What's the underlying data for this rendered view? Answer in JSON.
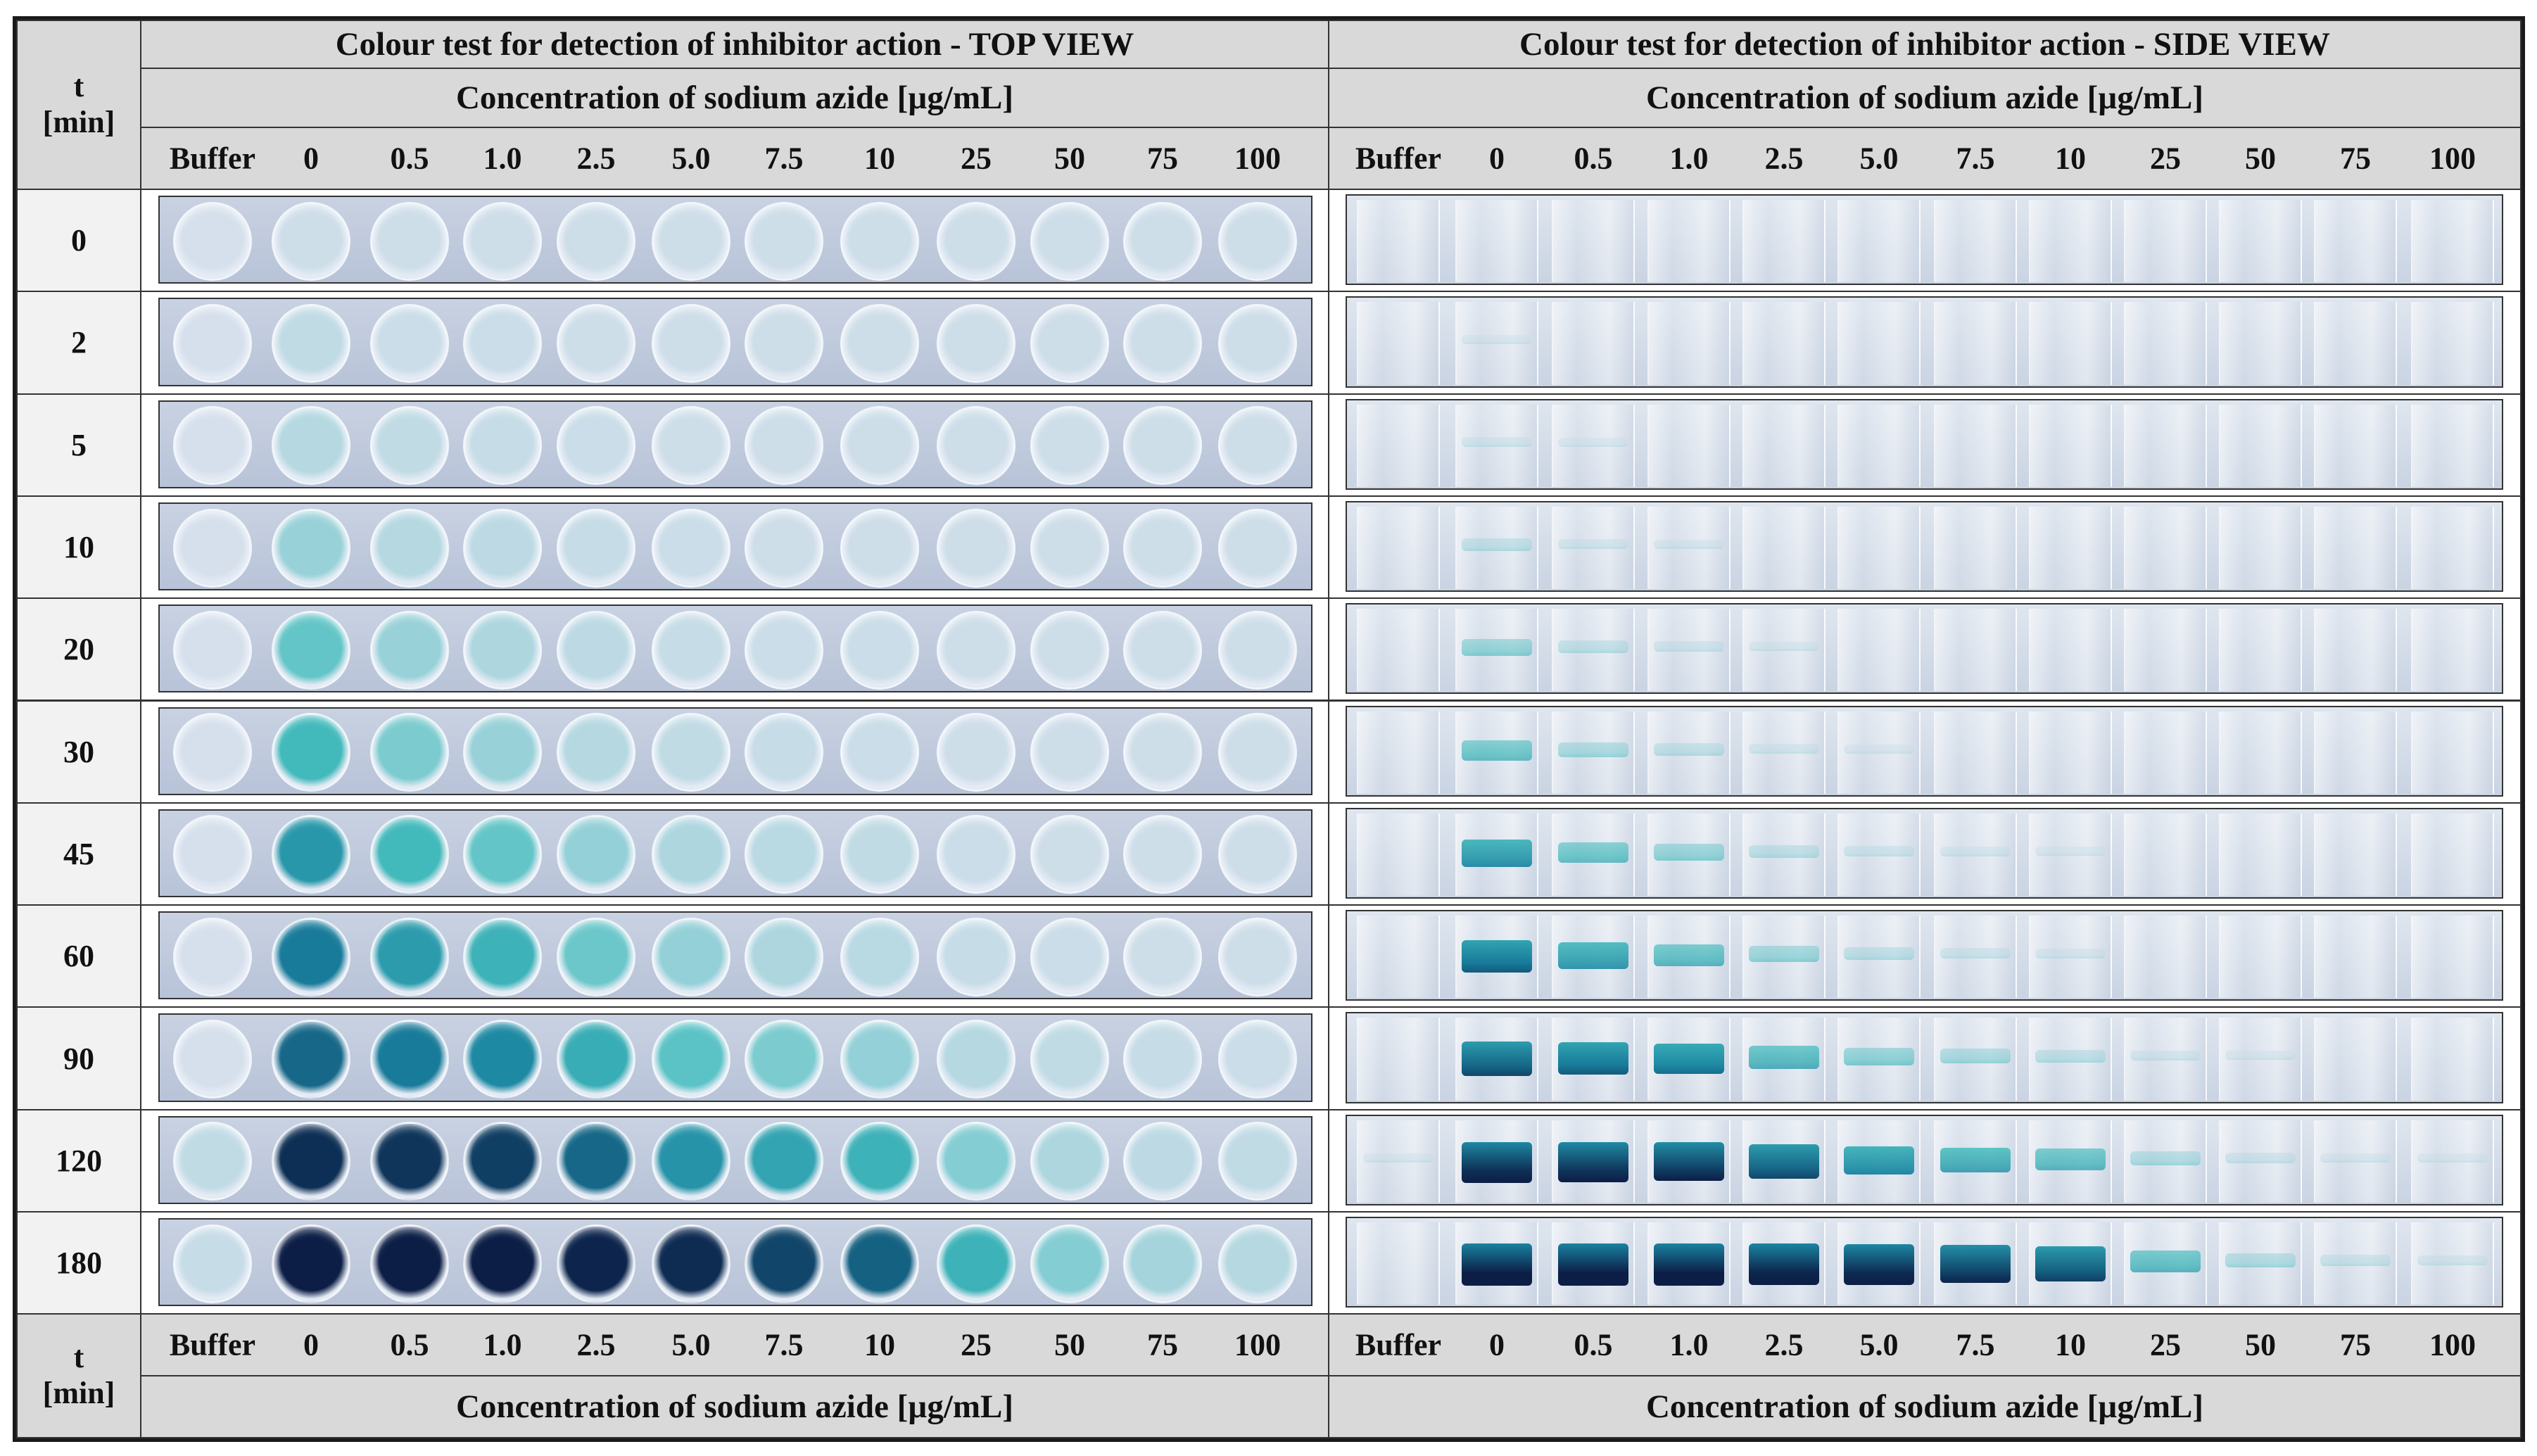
{
  "titles": {
    "top": "Colour test for detection of inhibitor action - TOP VIEW",
    "side": "Colour test for detection of inhibitor action - SIDE VIEW"
  },
  "concentration_label": "Concentration of sodium azide [µg/mL]",
  "time_header": {
    "line1": "t",
    "line2": "[min]"
  },
  "columns": [
    "Buffer",
    "0",
    "0.5",
    "1.0",
    "2.5",
    "5.0",
    "7.5",
    "10",
    "25",
    "50",
    "75",
    "100"
  ],
  "times": [
    "0",
    "2",
    "5",
    "10",
    "20",
    "30",
    "45",
    "60",
    "90",
    "120",
    "180"
  ],
  "intensity": [
    [
      0,
      0.02,
      0.02,
      0.02,
      0.02,
      0.02,
      0.02,
      0.02,
      0.02,
      0.02,
      0.02,
      0.02
    ],
    [
      0,
      0.05,
      0.03,
      0.03,
      0.02,
      0.02,
      0.02,
      0.02,
      0.02,
      0.02,
      0.02,
      0.02
    ],
    [
      0,
      0.08,
      0.05,
      0.04,
      0.03,
      0.02,
      0.02,
      0.02,
      0.02,
      0.02,
      0.02,
      0.02
    ],
    [
      0,
      0.15,
      0.08,
      0.06,
      0.04,
      0.03,
      0.02,
      0.02,
      0.02,
      0.02,
      0.02,
      0.02
    ],
    [
      0,
      0.28,
      0.15,
      0.1,
      0.06,
      0.04,
      0.03,
      0.03,
      0.02,
      0.02,
      0.02,
      0.02
    ],
    [
      0,
      0.38,
      0.22,
      0.15,
      0.08,
      0.05,
      0.04,
      0.03,
      0.02,
      0.02,
      0.02,
      0.02
    ],
    [
      0,
      0.58,
      0.38,
      0.28,
      0.16,
      0.1,
      0.07,
      0.05,
      0.03,
      0.02,
      0.02,
      0.02
    ],
    [
      0,
      0.72,
      0.55,
      0.42,
      0.26,
      0.16,
      0.1,
      0.07,
      0.04,
      0.03,
      0.02,
      0.02
    ],
    [
      0,
      0.78,
      0.72,
      0.66,
      0.45,
      0.3,
      0.22,
      0.16,
      0.08,
      0.05,
      0.04,
      0.03
    ],
    [
      0.05,
      0.95,
      0.93,
      0.9,
      0.78,
      0.6,
      0.5,
      0.42,
      0.2,
      0.1,
      0.06,
      0.05
    ],
    [
      0.04,
      1.0,
      1.0,
      1.0,
      0.98,
      0.96,
      0.88,
      0.8,
      0.42,
      0.2,
      0.12,
      0.08
    ]
  ]
}
